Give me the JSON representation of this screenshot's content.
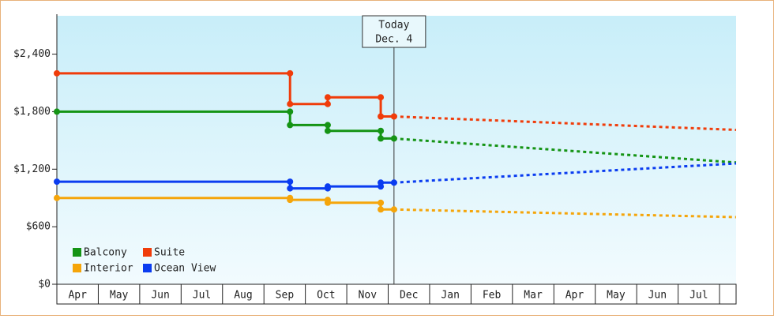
{
  "chart_data": {
    "type": "line",
    "x": [
      0,
      5.63,
      5.63,
      6.54,
      6.54,
      7.82,
      7.82,
      8.14,
      16.4
    ],
    "series": [
      {
        "name": "Balcony",
        "color": "#159415",
        "values": [
          1800,
          1800,
          1660,
          1660,
          1600,
          1600,
          1520,
          1520,
          1270
        ]
      },
      {
        "name": "Suite",
        "color": "#f03c0a",
        "values": [
          2200,
          2200,
          1880,
          1880,
          1950,
          1950,
          1750,
          1750,
          1610
        ]
      },
      {
        "name": "Interior",
        "color": "#f5a50a",
        "values": [
          900,
          900,
          880,
          880,
          850,
          850,
          780,
          780,
          700
        ]
      },
      {
        "name": "Ocean View",
        "color": "#0a3cf0",
        "values": [
          1070,
          1070,
          1000,
          1000,
          1020,
          1020,
          1060,
          1060,
          1260
        ]
      }
    ],
    "xlim": [
      0,
      16.4
    ],
    "xticks": [
      {
        "value": 0.5,
        "label": "Apr"
      },
      {
        "value": 1.5,
        "label": "May"
      },
      {
        "value": 2.5,
        "label": "Jun"
      },
      {
        "value": 3.5,
        "label": "Jul"
      },
      {
        "value": 4.5,
        "label": "Aug"
      },
      {
        "value": 5.5,
        "label": "Sep"
      },
      {
        "value": 6.5,
        "label": "Oct"
      },
      {
        "value": 7.5,
        "label": "Nov"
      },
      {
        "value": 8.5,
        "label": "Dec"
      },
      {
        "value": 9.5,
        "label": "Jan"
      },
      {
        "value": 10.5,
        "label": "Feb"
      },
      {
        "value": 11.5,
        "label": "Mar"
      },
      {
        "value": 12.5,
        "label": "Apr"
      },
      {
        "value": 13.5,
        "label": "May"
      },
      {
        "value": 14.5,
        "label": "Jun"
      },
      {
        "value": 15.5,
        "label": "Jul"
      }
    ],
    "ylim": [
      0,
      2800
    ],
    "yticks": [
      {
        "value": 0,
        "label": "$0"
      },
      {
        "value": 600,
        "label": "$600"
      },
      {
        "value": 1200,
        "label": "$1,200"
      },
      {
        "value": 1800,
        "label": "$1,800"
      },
      {
        "value": 2400,
        "label": "$2,400"
      }
    ],
    "annotation": {
      "x": 8.14,
      "lines": [
        "Today",
        "Dec. 4"
      ]
    },
    "legend": "lower left"
  }
}
